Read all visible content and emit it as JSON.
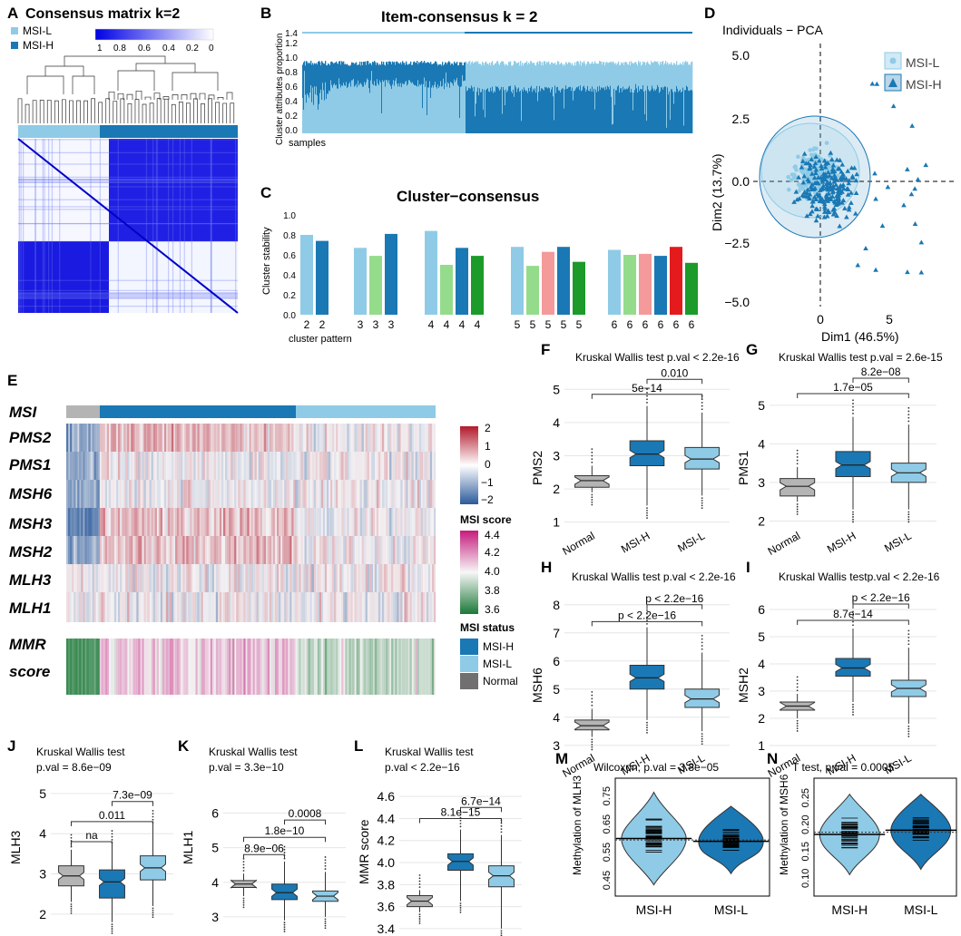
{
  "colors": {
    "msi_h": "#1a78b4",
    "msi_l": "#8fcbe6",
    "normal": "#b4b4b4",
    "deep_blue": "#1414e6",
    "green": "#94dc8c",
    "salmon": "#f49a9a",
    "red": "#e41a1c",
    "dark_green": "#1c9a2a"
  },
  "panels": {
    "A": {
      "letter": "A",
      "title": "Consensus matrix k=2",
      "legend": [
        "MSI-L",
        "MSI-H"
      ],
      "scale_ticks": [
        "1",
        "0.8",
        "0.6",
        "0.4",
        "0.2",
        "0"
      ]
    },
    "B": {
      "letter": "B",
      "title": "Item-consensus k = 2",
      "ylabel": "Cluster attributes proportion",
      "xlabel": "samples",
      "yticks": [
        "0.0",
        "0.2",
        "0.4",
        "0.6",
        "0.8",
        "1.0",
        "1.2",
        "1.4"
      ]
    },
    "C": {
      "letter": "C",
      "title": "Cluster−consensus",
      "ylabel": "Cluster stability",
      "xlabel": "cluster pattern",
      "yticks": [
        "0.0",
        "0.2",
        "0.4",
        "0.6",
        "0.8",
        "1.0"
      ]
    },
    "D": {
      "letter": "D",
      "title": "Individuals − PCA",
      "xlabel": "Dim1 (46.5%)",
      "ylabel": "Dim2 (13.7%)",
      "legend": [
        "MSI-L",
        "MSI-H"
      ],
      "xticks": [
        "0",
        "5"
      ],
      "yticks": [
        "5.0",
        "2.5",
        "0.0",
        "−2.5",
        "−5.0"
      ]
    },
    "E": {
      "letter": "E",
      "rows": [
        "MSI",
        "PMS2",
        "PMS1",
        "MSH6",
        "MSH3",
        "MSH2",
        "MLH3",
        "MLH1"
      ],
      "mmr_label_1": "MMR",
      "mmr_label_2": "score",
      "scale1_ticks": [
        "2",
        "1",
        "0",
        "−1",
        "−2"
      ],
      "score_title": "MSI score",
      "scale2_ticks": [
        "4.4",
        "4.2",
        "4.0",
        "3.8",
        "3.6"
      ],
      "status_title": "MSI status",
      "status_items": [
        "MSI-H",
        "MSI-L",
        "Normal"
      ]
    }
  },
  "chart_data": [
    {
      "id": "C",
      "type": "bar",
      "title": "Cluster−consensus",
      "xlabel": "cluster pattern",
      "ylabel": "Cluster stability",
      "ylim": [
        0,
        1.0
      ],
      "groups": [
        {
          "labels": [
            "2",
            "2"
          ],
          "values": [
            0.8,
            0.74
          ]
        },
        {
          "labels": [
            "3",
            "3",
            "3"
          ],
          "values": [
            0.67,
            0.59,
            0.81
          ]
        },
        {
          "labels": [
            "4",
            "4",
            "4",
            "4"
          ],
          "values": [
            0.84,
            0.5,
            0.67,
            0.59
          ]
        },
        {
          "labels": [
            "5",
            "5",
            "5",
            "5",
            "5"
          ],
          "values": [
            0.68,
            0.49,
            0.63,
            0.68,
            0.53
          ]
        },
        {
          "labels": [
            "6",
            "6",
            "6",
            "6",
            "6",
            "6"
          ],
          "values": [
            0.65,
            0.6,
            0.61,
            0.59,
            0.68,
            0.52
          ]
        }
      ]
    },
    {
      "id": "F",
      "type": "box",
      "title": "Kruskal Wallis test p.val < 2.2e-16",
      "ylabel": "PMS2",
      "ylim": [
        0.8,
        5.8
      ],
      "yticks": [
        1,
        2,
        3,
        4,
        5
      ],
      "categories": [
        "Normal",
        "MSI-H",
        "MSI-L"
      ],
      "boxes": [
        {
          "min": 1.9,
          "q1": 2.05,
          "median": 2.25,
          "q3": 2.4,
          "max": 2.7
        },
        {
          "min": 1.5,
          "q1": 2.7,
          "median": 3.05,
          "q3": 3.45,
          "max": 4.5
        },
        {
          "min": 1.8,
          "q1": 2.6,
          "median": 2.9,
          "q3": 3.25,
          "max": 4.3
        }
      ],
      "comparisons": [
        {
          "from": 1,
          "to": 2,
          "label": "0.010",
          "y": 5.3
        },
        {
          "from": 0,
          "to": 2,
          "label": "5e−14",
          "y": 4.85
        }
      ]
    },
    {
      "id": "G",
      "type": "box",
      "title": "Kruskal Wallis test p.val = 2.6e-15",
      "ylabel": "PMS1",
      "ylim": [
        1.8,
        6.1
      ],
      "yticks": [
        2,
        3,
        4,
        5
      ],
      "categories": [
        "Normal",
        "MSI-H",
        "MSI-L"
      ],
      "boxes": [
        {
          "min": 2.5,
          "q1": 2.65,
          "median": 2.9,
          "q3": 3.1,
          "max": 3.4
        },
        {
          "min": 2.3,
          "q1": 3.15,
          "median": 3.45,
          "q3": 3.8,
          "max": 4.7
        },
        {
          "min": 2.3,
          "q1": 3.0,
          "median": 3.25,
          "q3": 3.5,
          "max": 4.5
        }
      ],
      "comparisons": [
        {
          "from": 1,
          "to": 2,
          "label": "8.2e−08",
          "y": 5.7
        },
        {
          "from": 0,
          "to": 2,
          "label": "1.7e−05",
          "y": 5.3
        }
      ]
    },
    {
      "id": "H",
      "type": "box",
      "title": "Kruskal Wallis test p.val < 2.2e-16",
      "ylabel": "MSH6",
      "ylim": [
        2.8,
        8.8
      ],
      "yticks": [
        3,
        4,
        5,
        6,
        7,
        8
      ],
      "categories": [
        "Normal",
        "MSI-H",
        "MSI-L"
      ],
      "boxes": [
        {
          "min": 3.3,
          "q1": 3.55,
          "median": 3.7,
          "q3": 3.9,
          "max": 4.3
        },
        {
          "min": 3.9,
          "q1": 5.0,
          "median": 5.4,
          "q3": 5.85,
          "max": 7.2
        },
        {
          "min": 3.5,
          "q1": 4.35,
          "median": 4.65,
          "q3": 5.0,
          "max": 6.3
        }
      ],
      "comparisons": [
        {
          "from": 1,
          "to": 2,
          "label": "p < 2.2e−16",
          "y": 8.0
        },
        {
          "from": 0,
          "to": 2,
          "label": "p < 2.2e−16",
          "y": 7.4
        }
      ]
    },
    {
      "id": "I",
      "type": "box",
      "title": "Kruskal Wallis testp.val < 2.2e-16",
      "ylabel": "MSH2",
      "ylim": [
        0.8,
        7.0
      ],
      "yticks": [
        1,
        2,
        3,
        4,
        5,
        6
      ],
      "categories": [
        "Normal",
        "MSI-H",
        "MSI-L"
      ],
      "boxes": [
        {
          "min": 2.0,
          "q1": 2.3,
          "median": 2.45,
          "q3": 2.6,
          "max": 2.9
        },
        {
          "min": 2.6,
          "q1": 3.55,
          "median": 3.85,
          "q3": 4.2,
          "max": 5.3
        },
        {
          "min": 1.8,
          "q1": 2.8,
          "median": 3.1,
          "q3": 3.4,
          "max": 4.6
        }
      ],
      "comparisons": [
        {
          "from": 1,
          "to": 2,
          "label": "p < 2.2e−16",
          "y": 6.2
        },
        {
          "from": 0,
          "to": 2,
          "label": "8.7e−14",
          "y": 5.6
        }
      ]
    },
    {
      "id": "J",
      "type": "box",
      "title": "Kruskal Wallis test",
      "title2": "p.val = 8.6e−09",
      "ylabel": "MLH3",
      "ylim": [
        1.5,
        5.2
      ],
      "yticks": [
        2,
        3,
        4,
        5
      ],
      "categories": [
        "Normal",
        "MSI-H",
        "MSI-L"
      ],
      "boxes": [
        {
          "min": 2.3,
          "q1": 2.7,
          "median": 2.95,
          "q3": 3.2,
          "max": 3.6
        },
        {
          "min": 1.8,
          "q1": 2.4,
          "median": 2.8,
          "q3": 3.1,
          "max": 3.7
        },
        {
          "min": 2.2,
          "q1": 2.85,
          "median": 3.15,
          "q3": 3.45,
          "max": 4.2
        }
      ],
      "comparisons": [
        {
          "from": 1,
          "to": 2,
          "label": "7.3e−09",
          "y": 4.8
        },
        {
          "from": 0,
          "to": 2,
          "label": "0.011",
          "y": 4.3
        },
        {
          "from": 0,
          "to": 1,
          "label": "na",
          "y": 3.8
        }
      ]
    },
    {
      "id": "K",
      "type": "box",
      "title": "Kruskal Wallis test",
      "title2": "p.val = 3.3e−10",
      "ylabel": "MLH1",
      "ylim": [
        2.5,
        6.8
      ],
      "yticks": [
        3,
        4,
        5,
        6
      ],
      "categories": [
        "Normal",
        "MSI-H",
        "MSI-L"
      ],
      "boxes": [
        {
          "min": 3.6,
          "q1": 3.85,
          "median": 3.95,
          "q3": 4.05,
          "max": 4.25
        },
        {
          "min": 2.9,
          "q1": 3.5,
          "median": 3.7,
          "q3": 3.95,
          "max": 4.6
        },
        {
          "min": 3.0,
          "q1": 3.45,
          "median": 3.6,
          "q3": 3.75,
          "max": 4.3
        }
      ],
      "comparisons": [
        {
          "from": 1,
          "to": 2,
          "label": "0.0008",
          "y": 5.8
        },
        {
          "from": 0,
          "to": 2,
          "label": "1.8e−10",
          "y": 5.3
        },
        {
          "from": 0,
          "to": 1,
          "label": "8.9e−06",
          "y": 4.8
        }
      ]
    },
    {
      "id": "L",
      "type": "box",
      "title": "Kruskal Wallis test",
      "title2": "p.val < 2.2e−16",
      "ylabel": "MMR score",
      "ylim": [
        3.35,
        4.7
      ],
      "yticks": [
        3.4,
        3.6,
        3.8,
        4.0,
        4.2,
        4.4,
        4.6
      ],
      "categories": [
        "Normal",
        "MSI-H",
        "MSI-L"
      ],
      "boxes": [
        {
          "min": 3.55,
          "q1": 3.6,
          "median": 3.65,
          "q3": 3.7,
          "max": 3.75
        },
        {
          "min": 3.65,
          "q1": 3.93,
          "median": 4.01,
          "q3": 4.08,
          "max": 4.3
        },
        {
          "min": 3.4,
          "q1": 3.78,
          "median": 3.88,
          "q3": 3.97,
          "max": 4.25
        }
      ],
      "comparisons": [
        {
          "from": 1,
          "to": 2,
          "label": "6.7e−14",
          "y": 4.5
        },
        {
          "from": 0,
          "to": 2,
          "label": "8.1e−15",
          "y": 4.4
        }
      ]
    },
    {
      "id": "M",
      "type": "violin",
      "title": "Wilcoxon, p.val = 3.8e−05",
      "ylabel": "Methylation of MLH3",
      "ylim": [
        0.4,
        0.82
      ],
      "yticks": [
        0.45,
        0.55,
        0.65,
        0.75
      ],
      "categories": [
        "MSI-H",
        "MSI-L"
      ],
      "means": [
        0.605,
        0.595
      ],
      "ranges": [
        [
          0.44,
          0.77
        ],
        [
          0.48,
          0.72
        ]
      ]
    },
    {
      "id": "N",
      "type": "violin",
      "title": "T test, p.val = 0.0005",
      "ylabel": "Methylation of MSH6",
      "ylim": [
        0.07,
        0.29
      ],
      "yticks": [
        0.1,
        0.15,
        0.2,
        0.25
      ],
      "categories": [
        "MSI-H",
        "MSI-L"
      ],
      "means": [
        0.185,
        0.193
      ],
      "ranges": [
        [
          0.11,
          0.26
        ],
        [
          0.12,
          0.26
        ]
      ]
    }
  ]
}
